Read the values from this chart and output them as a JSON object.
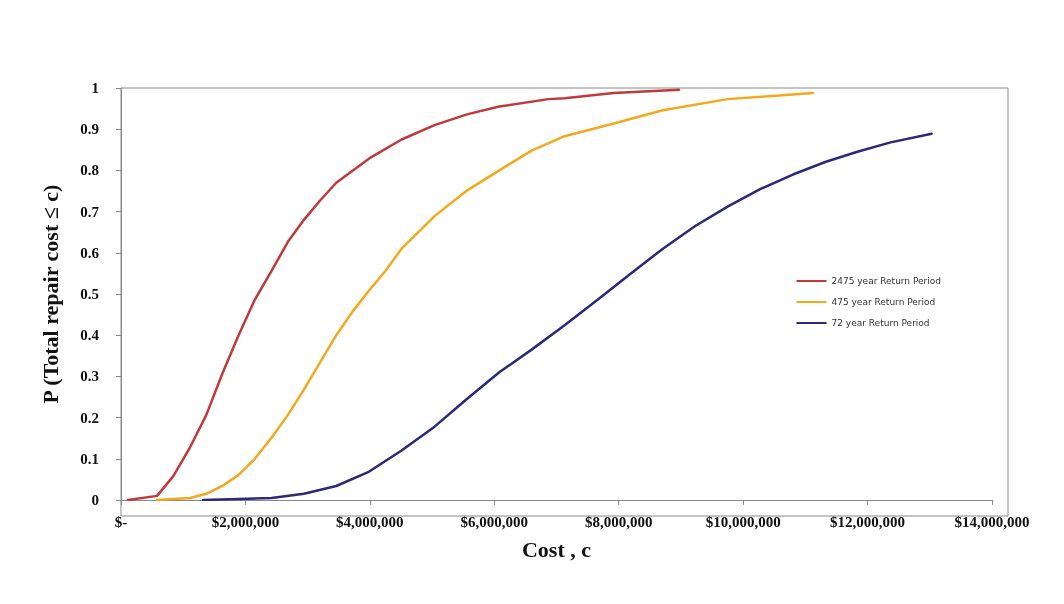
{
  "chart_data": {
    "type": "line",
    "xlabel": "Cost , c",
    "ylabel": "P (Total repair cost ≤ c)",
    "xlim": [
      0,
      14000000
    ],
    "xticks": [
      {
        "value": 0,
        "label": "$-"
      },
      {
        "value": 2000000,
        "label": "$2,000,000"
      },
      {
        "value": 4000000,
        "label": "$4,000,000"
      },
      {
        "value": 6000000,
        "label": "$6,000,000"
      },
      {
        "value": 8000000,
        "label": "$8,000,000"
      },
      {
        "value": 10000000,
        "label": "$10,000,000"
      },
      {
        "value": 12000000,
        "label": "$12,000,000"
      },
      {
        "value": 14000000,
        "label": "$14,000,000"
      }
    ],
    "ylim": [
      0,
      1
    ],
    "yticks": [
      0,
      0.1,
      0.2,
      0.3,
      0.4,
      0.5,
      0.6,
      0.7,
      0.8,
      0.9,
      1
    ],
    "grid": false,
    "legend": "right",
    "marker": "none",
    "line_style": "solid",
    "series": [
      {
        "name": "2475 year Return Period",
        "color": "#c0393b",
        "x": [
          110000,
          580000,
          840000,
          1110000,
          1370000,
          1630000,
          1890000,
          2150000,
          2420000,
          2680000,
          2940000,
          3200000,
          3460000,
          3990000,
          4510000,
          5040000,
          5560000,
          6080000,
          6870000,
          7130000,
          7920000,
          8970000
        ],
        "values": [
          0,
          0.01,
          0.058,
          0.128,
          0.206,
          0.307,
          0.4,
          0.486,
          0.556,
          0.626,
          0.68,
          0.727,
          0.77,
          0.829,
          0.875,
          0.91,
          0.936,
          0.955,
          0.973,
          0.975,
          0.988,
          0.996
        ]
      },
      {
        "name": "475 year Return Period",
        "color": "#f5a81c",
        "x": [
          580000,
          1110000,
          1370000,
          1630000,
          1890000,
          2150000,
          2420000,
          2680000,
          2940000,
          3200000,
          3460000,
          3730000,
          3990000,
          4250000,
          4510000,
          5040000,
          5560000,
          6080000,
          6600000,
          7130000,
          7920000,
          8710000,
          9750000,
          11120000
        ],
        "values": [
          0,
          0.005,
          0.015,
          0.034,
          0.061,
          0.1,
          0.151,
          0.206,
          0.268,
          0.334,
          0.4,
          0.459,
          0.509,
          0.556,
          0.61,
          0.689,
          0.751,
          0.8,
          0.848,
          0.883,
          0.914,
          0.946,
          0.973,
          0.988
        ]
      },
      {
        "name": "72 year Return Period",
        "color": "#2b2a7a",
        "x": [
          1320000,
          2420000,
          2940000,
          3460000,
          3990000,
          4510000,
          5040000,
          5560000,
          6080000,
          6600000,
          7130000,
          7660000,
          8180000,
          8710000,
          9230000,
          9750000,
          10280000,
          10800000,
          11330000,
          11850000,
          12370000,
          13030000
        ],
        "values": [
          0,
          0.005,
          0.015,
          0.034,
          0.069,
          0.12,
          0.178,
          0.245,
          0.31,
          0.365,
          0.424,
          0.486,
          0.548,
          0.61,
          0.665,
          0.712,
          0.755,
          0.79,
          0.821,
          0.846,
          0.868,
          0.889
        ]
      }
    ]
  }
}
